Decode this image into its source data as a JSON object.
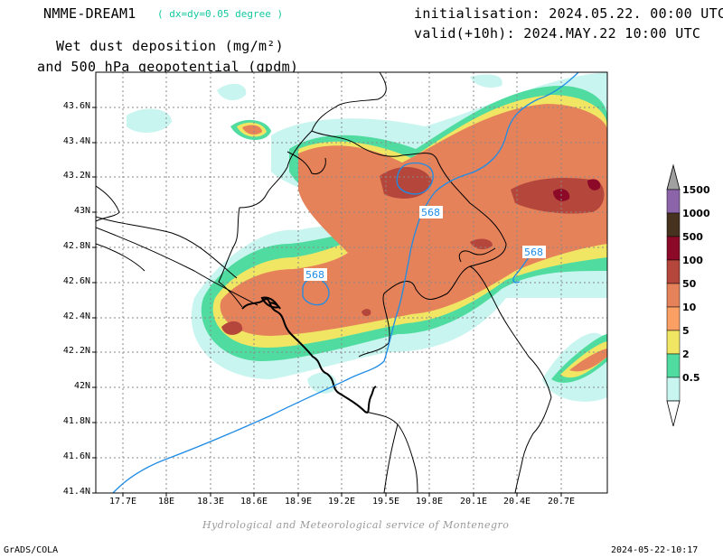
{
  "header": {
    "model": "NMME-DREAM1",
    "resolution": "( dx=dy=0.05 degree )",
    "title_line1": "Wet dust deposition (mg/m²)",
    "title_line2": "and 500 hPa geopotential (gpdm)",
    "init": "initialisation: 2024.05.22. 00:00 UTC",
    "valid": "valid(+10h): 2024.MAY.22 10:00 UTC"
  },
  "map": {
    "lat_ticks": [
      "43.6N",
      "43.4N",
      "43.2N",
      "43N",
      "42.8N",
      "42.6N",
      "42.4N",
      "42.2N",
      "42N",
      "41.8N",
      "41.6N",
      "41.4N"
    ],
    "lon_ticks": [
      "17.7E",
      "18E",
      "18.3E",
      "18.6E",
      "18.9E",
      "19.2E",
      "19.5E",
      "19.8E",
      "20.1E",
      "20.4E",
      "20.7E"
    ],
    "contour_labels": [
      "568",
      "568",
      "568"
    ],
    "contour_color": "#1e8ce6"
  },
  "colorbar": {
    "levels": [
      "1500",
      "1000",
      "500",
      "100",
      "50",
      "10",
      "5",
      "2",
      "0.5"
    ],
    "colors": [
      "#8c64aa",
      "#46321e",
      "#8c0a28",
      "#b4463c",
      "#e6825a",
      "#faa064",
      "#f0e664",
      "#50dca0",
      "#c8f5ef"
    ]
  },
  "credit": "Hydrological and Meteorological service of Montenegro",
  "footer": {
    "left": "GrADS/COLA",
    "right": "2024-05-22-10:17"
  }
}
